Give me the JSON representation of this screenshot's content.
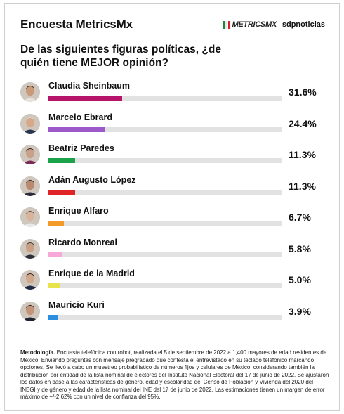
{
  "header": {
    "title": "Encuesta MetricsMx",
    "brand_logo_text": "METRICSMX",
    "brand_partner": "sdpnoticias",
    "logo_colors": [
      "#1a8a3a",
      "#e8e8e8",
      "#d61f26"
    ]
  },
  "question": "De las siguientes figuras políticas, ¿de quién tiene MEJOR opinión?",
  "chart_data": {
    "type": "bar",
    "title": "De las siguientes figuras políticas, ¿de quién tiene MEJOR opinión?",
    "categories": [
      "Claudia Sheinbaum",
      "Marcelo Ebrard",
      "Beatriz Paredes",
      "Adán Augusto López",
      "Enrique Alfaro",
      "Ricardo Monreal",
      "Enrique de la Madrid",
      "Mauricio Kuri"
    ],
    "values": [
      31.6,
      24.4,
      11.3,
      11.3,
      6.7,
      5.8,
      5.0,
      3.9
    ],
    "labels": [
      "31.6%",
      "24.4%",
      "11.3%",
      "11.3%",
      "6.7%",
      "5.8%",
      "5.0%",
      "3.9%"
    ],
    "colors": [
      "#b5146a",
      "#9b59c9",
      "#1ba34a",
      "#e02428",
      "#f39a2a",
      "#f7a8d8",
      "#e8e34a",
      "#2c8fe0"
    ],
    "xlim": [
      0,
      100
    ]
  },
  "methodology": {
    "label": "Metodología.",
    "text": "Encuesta telefónica con robot, realizada el 5 de septiembre de 2022 a 1,400 mayores de edad residentes de México. Enviando preguntas con mensaje pregrabado que contesta el entrevistado en su teclado telefónico marcando opciones. Se llevó a cabo un muestreo probabilístico de números fijos y celulares de México, considerando también la distribución por entidad de la lista nominal de electores del Instituto Nacional Electoral del 17 de junio de 2022. Se ajustaron los datos en base a las características de género, edad y escolaridad del Censo de Población y Vivienda del 2020 del INEGI y de género y edad de la lista nominal del INE del 17 de junio de 2022. Las estimaciones tienen un margen de error máximo de +/-2.62% con un nivel de confianza del 95%."
  }
}
